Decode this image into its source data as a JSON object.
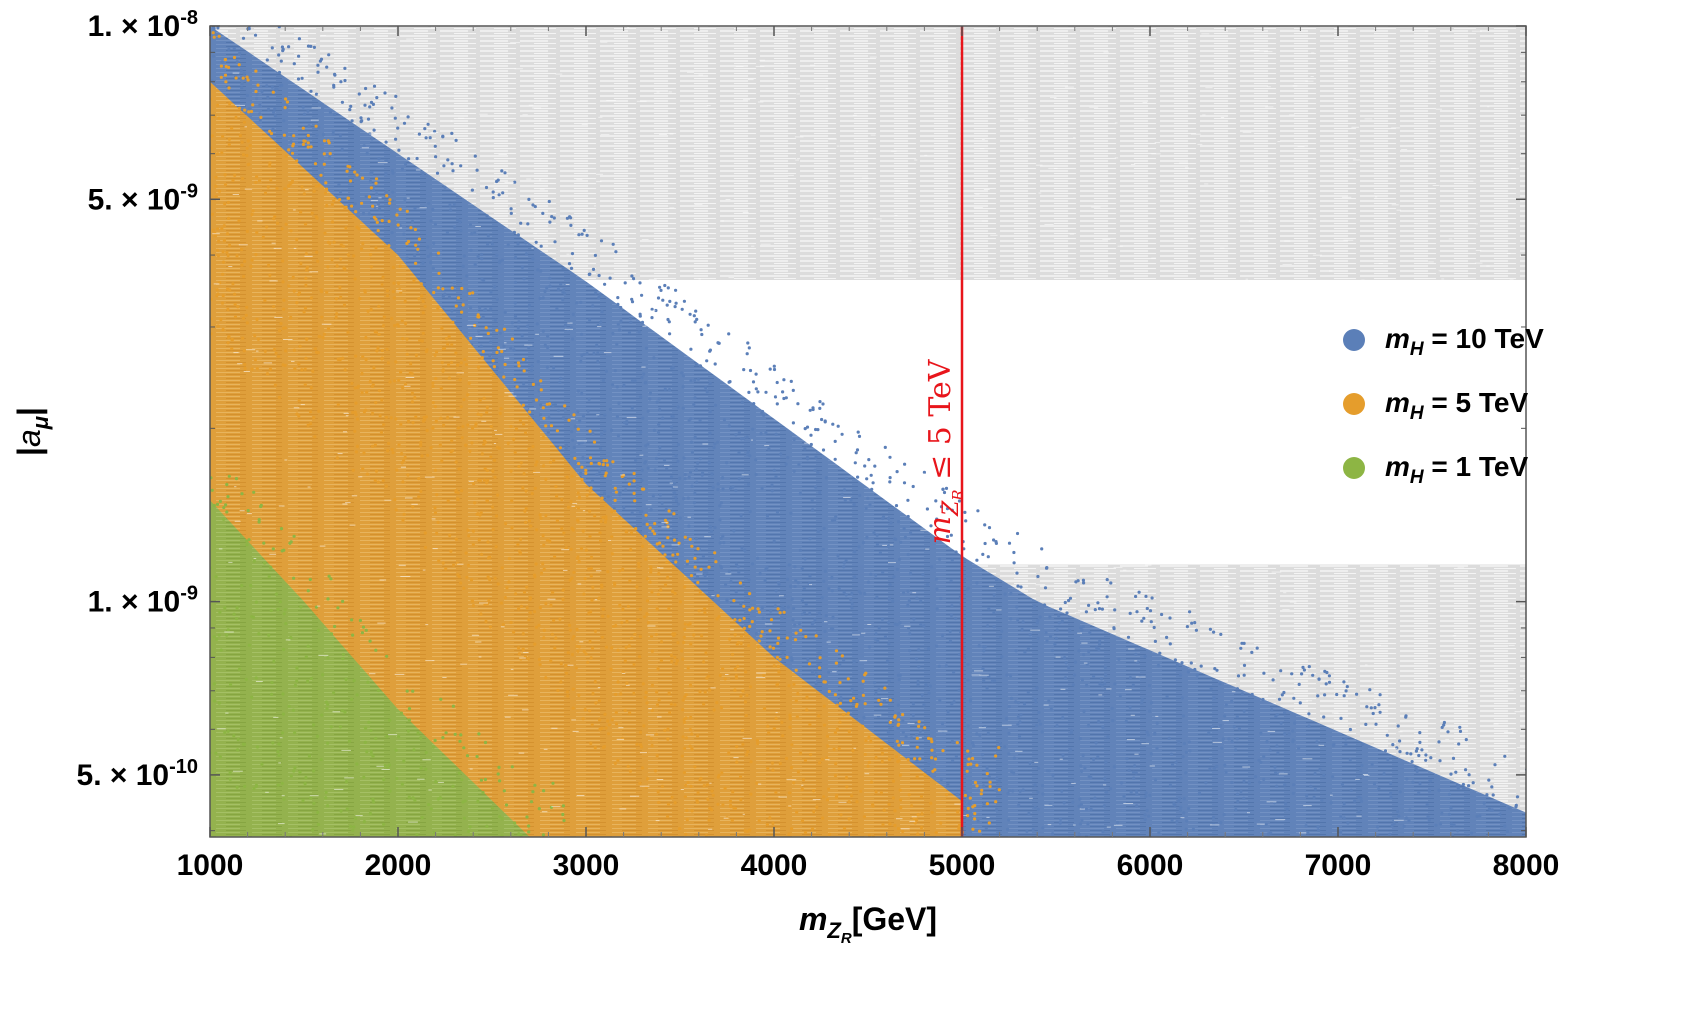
{
  "chart_data": {
    "type": "scatter",
    "xlabel": "m_{Z_R}[GeV]",
    "ylabel": "|a_μ|",
    "xlim": [
      1000,
      8000
    ],
    "ylim": [
      3.9e-10,
      1e-08
    ],
    "yscale": "log",
    "x_ticks": [
      {
        "value": 1000,
        "label": "1000"
      },
      {
        "value": 2000,
        "label": "2000"
      },
      {
        "value": 3000,
        "label": "3000"
      },
      {
        "value": 4000,
        "label": "4000"
      },
      {
        "value": 5000,
        "label": "5000"
      },
      {
        "value": 6000,
        "label": "6000"
      },
      {
        "value": 7000,
        "label": "7000"
      },
      {
        "value": 8000,
        "label": "8000"
      }
    ],
    "y_ticks": [
      {
        "value": 1e-08,
        "mant": "1.",
        "exp": "-8"
      },
      {
        "value": 5e-09,
        "mant": "5.",
        "exp": "-9"
      },
      {
        "value": 1e-09,
        "mant": "1.",
        "exp": "-9"
      },
      {
        "value": 5e-10,
        "mant": "5.",
        "exp": "-10"
      }
    ],
    "allowed_band": {
      "ymin": 1.16e-09,
      "ymax": 3.62e-09,
      "color": "#ffffff"
    },
    "excluded_color": "#d9d9d9",
    "vertical_line": {
      "x": 5000,
      "color": "#e8151b"
    },
    "annotation": {
      "text": "m_{Z_R} ≤ 5 TeV",
      "color": "#e8151b"
    },
    "series": [
      {
        "name": "m_H = 10 TeV",
        "color": "#5b7fb8",
        "x_range": [
          1000,
          8000
        ],
        "y_upper_edge": [
          [
            1000,
            1e-08
          ],
          [
            3000,
            3.6e-09
          ],
          [
            5000,
            1.2e-09
          ],
          [
            5400,
            1e-09
          ],
          [
            8000,
            4.3e-10
          ]
        ]
      },
      {
        "name": "m_H = 5 TeV",
        "color": "#e59d2c",
        "x_range": [
          1000,
          5100
        ],
        "y_upper_edge": [
          [
            1000,
            8e-09
          ],
          [
            2000,
            4e-09
          ],
          [
            3000,
            1.6e-09
          ],
          [
            4000,
            8e-10
          ],
          [
            5000,
            4.5e-10
          ]
        ]
      },
      {
        "name": "m_H = 1 TeV",
        "color": "#8db544",
        "x_range": [
          1000,
          2700
        ],
        "y_upper_edge": [
          [
            1000,
            1.5e-09
          ],
          [
            1500,
            1e-09
          ],
          [
            2000,
            6.5e-10
          ],
          [
            2700,
            3.9e-10
          ]
        ]
      }
    ],
    "legend": {
      "placement": "right",
      "entries": [
        {
          "symbol": "m",
          "sub": "H",
          "value": "10 TeV",
          "color": "#5b7fb8"
        },
        {
          "symbol": "m",
          "sub": "H",
          "value": "5 TeV",
          "color": "#e59d2c"
        },
        {
          "symbol": "m",
          "sub": "H",
          "value": "1 TeV",
          "color": "#8db544"
        }
      ]
    }
  }
}
